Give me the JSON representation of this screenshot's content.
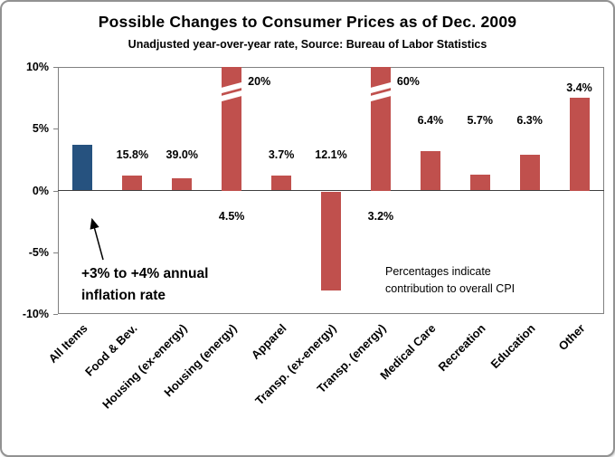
{
  "chart_data": {
    "type": "bar",
    "title": "Possible Changes to Consumer Prices as of Dec. 2009",
    "subtitle": "Unadjusted year-over-year rate, Source: Bureau of Labor Statistics",
    "ylim": [
      -10,
      10
    ],
    "ytick_values": [
      10,
      5,
      0,
      -5,
      -10
    ],
    "ytick_labels": [
      "10%",
      "5%",
      "0%",
      "-5%",
      "-10%"
    ],
    "grid": false,
    "legend": "none",
    "bars": [
      {
        "category": "All Items",
        "value": 3.7,
        "clipped": false,
        "color": "blue",
        "top_label": ""
      },
      {
        "category": "Food & Bev.",
        "value": 1.2,
        "clipped": false,
        "color": "red",
        "top_label": "15.8%"
      },
      {
        "category": "Housing (ex-energy)",
        "value": 1.0,
        "clipped": false,
        "color": "red",
        "top_label": "39.0%"
      },
      {
        "category": "Housing (energy)",
        "value": 20,
        "clipped": true,
        "color": "red",
        "top_label": "20%",
        "below_label": "4.5%"
      },
      {
        "category": "Apparel",
        "value": 1.2,
        "clipped": false,
        "color": "red",
        "top_label": "3.7%"
      },
      {
        "category": "Transp. (ex-energy)",
        "value": -8.0,
        "clipped": false,
        "color": "red",
        "top_label": "12.1%"
      },
      {
        "category": "Transp. (energy)",
        "value": 60,
        "clipped": true,
        "color": "red",
        "top_label": "60%",
        "below_label": "3.2%"
      },
      {
        "category": "Medical Care",
        "value": 3.2,
        "clipped": false,
        "color": "red",
        "top_label": "6.4%"
      },
      {
        "category": "Recreation",
        "value": 1.3,
        "clipped": false,
        "color": "red",
        "top_label": "5.7%"
      },
      {
        "category": "Education",
        "value": 2.9,
        "clipped": false,
        "color": "red",
        "top_label": "6.3%"
      },
      {
        "category": "Other",
        "value": 7.5,
        "clipped": false,
        "color": "red",
        "top_label": "3.4%"
      }
    ],
    "annotations": {
      "inflation_line1": "+3% to +4% annual",
      "inflation_line2": "inflation rate",
      "cpi_line1": "Percentages indicate",
      "cpi_line2": "contribution to overall CPI"
    }
  },
  "colors": {
    "bar_blue": "#26527F",
    "bar_red": "#C0504D",
    "axis_line": "#808080",
    "zero_line": "#3F3F3F",
    "frame_border": "#929292",
    "text": "#000000"
  }
}
